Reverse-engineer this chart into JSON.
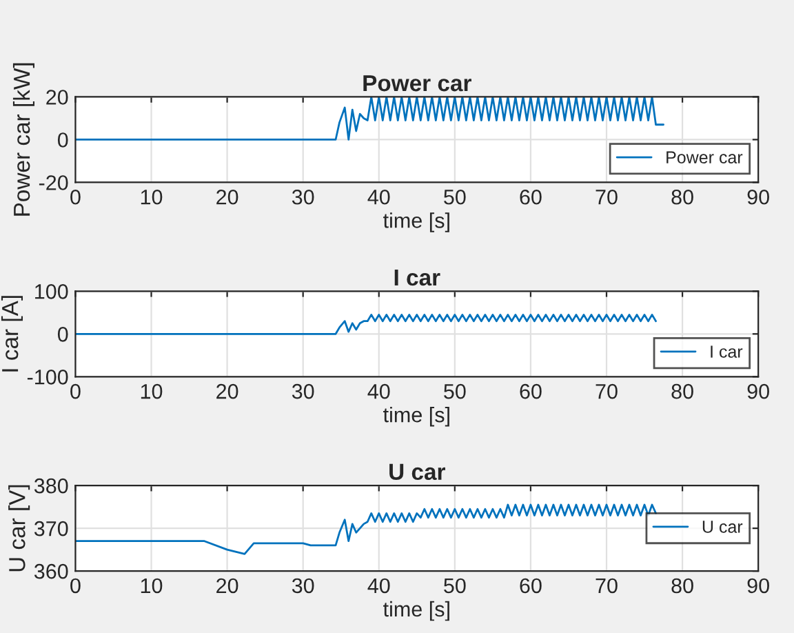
{
  "chart_data": [
    {
      "type": "line",
      "title": "Power car",
      "xlabel": "time [s]",
      "ylabel": "Power car [kW]",
      "xlim": [
        0,
        90
      ],
      "xticks": [
        0,
        10,
        20,
        30,
        40,
        50,
        60,
        70,
        80,
        90
      ],
      "ylim": [
        -20,
        20
      ],
      "yticks": [
        -20,
        0,
        20
      ],
      "grid": true,
      "legend": "lower right",
      "series": [
        {
          "name": "Power car",
          "color": "#0072bd",
          "x": [
            0,
            10,
            20,
            30,
            34.3,
            34.8,
            35.5,
            36,
            36.5,
            37,
            37.5,
            38,
            38.5,
            39,
            39.5,
            40,
            40.5,
            41,
            41.5,
            42,
            42.5,
            43,
            43.5,
            44,
            44.5,
            45,
            45.5,
            46,
            46.5,
            47,
            47.5,
            48,
            48.5,
            49,
            49.5,
            50,
            50.5,
            51,
            51.5,
            52,
            52.5,
            53,
            53.5,
            54,
            54.5,
            55,
            55.5,
            56,
            56.5,
            57,
            57.5,
            58,
            58.5,
            59,
            59.5,
            60,
            60.5,
            61,
            61.5,
            62,
            62.5,
            63,
            63.5,
            64,
            64.5,
            65,
            65.5,
            66,
            66.5,
            67,
            67.5,
            68,
            68.5,
            69,
            69.5,
            70,
            70.5,
            71,
            71.5,
            72,
            72.5,
            73,
            73.5,
            74,
            74.5,
            75,
            75.5,
            76,
            76.5,
            77.5
          ],
          "values": [
            0,
            0,
            0,
            0,
            0,
            8,
            15,
            0,
            14,
            4,
            12,
            10,
            9,
            20,
            9,
            20,
            9,
            20,
            9,
            20,
            9,
            20,
            9,
            20,
            9,
            20,
            9,
            20,
            9,
            20,
            9,
            20,
            9,
            20,
            9,
            20,
            9,
            20,
            9,
            20,
            9,
            20,
            9,
            20,
            9,
            20,
            9,
            20,
            9,
            20,
            9,
            20,
            9,
            20,
            9,
            20,
            9,
            20,
            9,
            20,
            9,
            20,
            9,
            20,
            9,
            20,
            9,
            20,
            9,
            20,
            9,
            20,
            9,
            20,
            9,
            20,
            9,
            20,
            9,
            20,
            9,
            20,
            9,
            20,
            9,
            20,
            9,
            20,
            7,
            7
          ]
        }
      ]
    },
    {
      "type": "line",
      "title": "I car",
      "xlabel": "time [s]",
      "ylabel": "I car [A]",
      "xlim": [
        0,
        90
      ],
      "xticks": [
        0,
        10,
        20,
        30,
        40,
        50,
        60,
        70,
        80,
        90
      ],
      "ylim": [
        -100,
        100
      ],
      "yticks": [
        -100,
        0,
        100
      ],
      "grid": true,
      "legend": "lower right",
      "series": [
        {
          "name": "I car",
          "color": "#0072bd",
          "x": [
            0,
            10,
            20,
            30,
            34.3,
            34.8,
            35.5,
            36,
            36.5,
            37,
            37.5,
            38,
            38.5,
            39,
            39.5,
            40,
            40.5,
            41,
            41.5,
            42,
            42.5,
            43,
            43.5,
            44,
            44.5,
            45,
            45.5,
            46,
            46.5,
            47,
            47.5,
            48,
            48.5,
            49,
            49.5,
            50,
            50.5,
            51,
            51.5,
            52,
            52.5,
            53,
            53.5,
            54,
            54.5,
            55,
            55.5,
            56,
            56.5,
            57,
            57.5,
            58,
            58.5,
            59,
            59.5,
            60,
            60.5,
            61,
            61.5,
            62,
            62.5,
            63,
            63.5,
            64,
            64.5,
            65,
            65.5,
            66,
            66.5,
            67,
            67.5,
            68,
            68.5,
            69,
            69.5,
            70,
            70.5,
            71,
            71.5,
            72,
            72.5,
            73,
            73.5,
            74,
            74.5,
            75,
            75.5,
            76,
            76.5
          ],
          "values": [
            0,
            0,
            0,
            0,
            0,
            15,
            30,
            5,
            25,
            10,
            25,
            30,
            30,
            45,
            30,
            45,
            30,
            45,
            30,
            45,
            30,
            45,
            30,
            45,
            30,
            45,
            30,
            45,
            30,
            45,
            30,
            45,
            30,
            45,
            30,
            45,
            30,
            45,
            30,
            45,
            30,
            45,
            30,
            45,
            30,
            45,
            30,
            45,
            30,
            45,
            30,
            45,
            30,
            45,
            30,
            45,
            30,
            45,
            30,
            45,
            30,
            45,
            30,
            45,
            30,
            45,
            30,
            45,
            30,
            45,
            30,
            45,
            30,
            45,
            30,
            45,
            30,
            45,
            30,
            45,
            30,
            45,
            30,
            45,
            30,
            45,
            30,
            45,
            30
          ]
        }
      ]
    },
    {
      "type": "line",
      "title": "U car",
      "xlabel": "time [s]",
      "ylabel": "U car [V]",
      "xlim": [
        0,
        90
      ],
      "xticks": [
        0,
        10,
        20,
        30,
        40,
        50,
        60,
        70,
        80,
        90
      ],
      "ylim": [
        360,
        380
      ],
      "yticks": [
        360,
        370,
        380
      ],
      "grid": true,
      "legend": "center right",
      "series": [
        {
          "name": "U car",
          "color": "#0072bd",
          "x": [
            0,
            10,
            17,
            20,
            22.3,
            23.5,
            30,
            31,
            34.3,
            34.8,
            35.5,
            36,
            36.5,
            37,
            37.5,
            38,
            38.5,
            39,
            39.5,
            40,
            40.5,
            41,
            41.5,
            42,
            42.5,
            43,
            43.5,
            44,
            44.5,
            45,
            45.5,
            46,
            46.5,
            47,
            47.5,
            48,
            48.5,
            49,
            49.5,
            50,
            50.5,
            51,
            51.5,
            52,
            52.5,
            53,
            53.5,
            54,
            54.5,
            55,
            55.5,
            56,
            56.5,
            57,
            57.5,
            58,
            58.5,
            59,
            59.5,
            60,
            60.5,
            61,
            61.5,
            62,
            62.5,
            63,
            63.5,
            64,
            64.5,
            65,
            65.5,
            66,
            66.5,
            67,
            67.5,
            68,
            68.5,
            69,
            69.5,
            70,
            70.5,
            71,
            71.5,
            72,
            72.5,
            73,
            73.5,
            74,
            74.5,
            75,
            75.5,
            76,
            76.5
          ],
          "values": [
            367,
            367,
            367,
            365,
            364,
            366.5,
            366.5,
            366,
            366,
            369,
            372,
            367,
            371,
            369,
            370,
            371,
            371.5,
            373.5,
            371.5,
            373.5,
            371.5,
            373.5,
            371.5,
            373.5,
            371.5,
            373.5,
            371.5,
            373.5,
            371.5,
            373.5,
            372.5,
            374.5,
            372.5,
            374.5,
            372.5,
            374.5,
            372.5,
            374.5,
            372.5,
            374.5,
            372.5,
            374.5,
            372.5,
            374.5,
            372.5,
            374.5,
            372.5,
            374.5,
            372.5,
            374.5,
            372.5,
            374.5,
            372.5,
            375.5,
            373,
            375.5,
            373,
            375.5,
            373,
            375.5,
            373,
            375.5,
            373,
            375.5,
            373,
            375.5,
            373,
            375.5,
            373,
            375.5,
            373,
            375.5,
            373,
            375.5,
            373,
            375.5,
            373,
            375.5,
            373,
            375.5,
            373,
            375.5,
            373,
            375.5,
            373,
            375.5,
            373,
            375.5,
            373,
            375.5,
            373,
            375.5,
            373.5
          ]
        }
      ]
    }
  ]
}
